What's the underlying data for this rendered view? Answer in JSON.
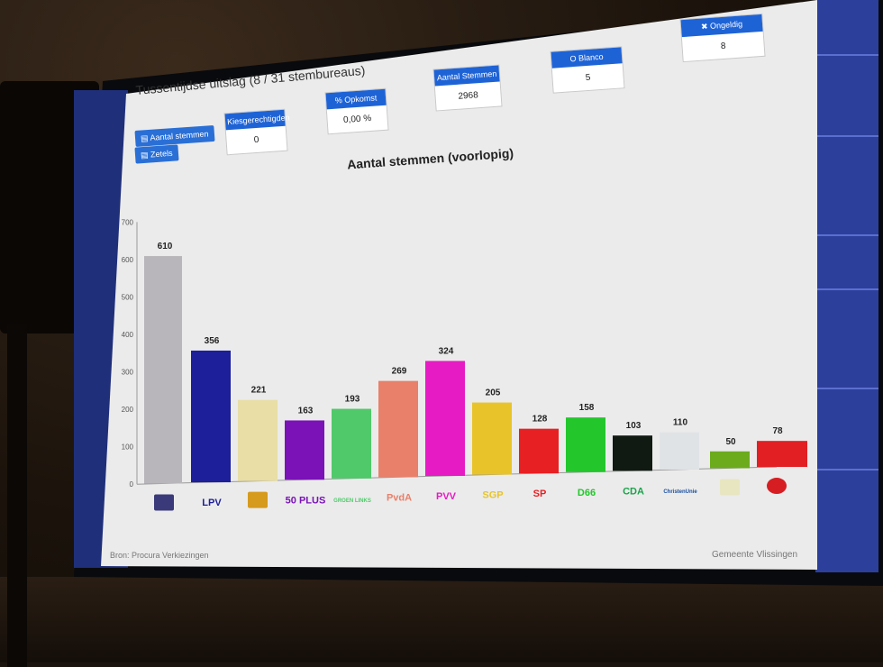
{
  "header": {
    "title": "Tussentijdse uitslag (8 / 31 stembureaus)",
    "buttons": [
      "Aantal stemmen",
      "Zetels"
    ]
  },
  "stats": [
    {
      "label": "Kiesgerechtigden",
      "value": "0"
    },
    {
      "label": "% Opkomst",
      "value": "0,00 %"
    },
    {
      "label": "Aantal Stemmen",
      "value": "2968"
    },
    {
      "label": "O Blanco",
      "value": "5"
    },
    {
      "label": "✖ Ongeldig",
      "value": "8"
    }
  ],
  "chart_data": {
    "type": "bar",
    "title": "Aantal stemmen (voorlopig)",
    "ylim": [
      0,
      700
    ],
    "yticks": [
      0,
      100,
      200,
      300,
      400,
      500,
      600,
      700
    ],
    "grid": false,
    "values": [
      610,
      356,
      221,
      163,
      193,
      269,
      324,
      205,
      128,
      158,
      103,
      110,
      50,
      78
    ],
    "colors": [
      "#b9b6bb",
      "#1d1e9a",
      "#e8dea6",
      "#7a12b8",
      "#4fc96a",
      "#e8806a",
      "#e61bc3",
      "#e8c42a",
      "#e62023",
      "#23c72c",
      "#111a12",
      "#e0e3e6",
      "#6cab1c",
      "#e21f23"
    ],
    "logos": [
      "",
      "LPV",
      "",
      "50 PLUS",
      "GROEN LINKS",
      "PvdA",
      "PVV",
      "SGP",
      "SP",
      "D66",
      "CDA",
      "ChristenUnie",
      "",
      ""
    ]
  },
  "footer": {
    "source": "Bron: Procura Verkiezingen",
    "org": "Gemeente Vlissingen"
  }
}
